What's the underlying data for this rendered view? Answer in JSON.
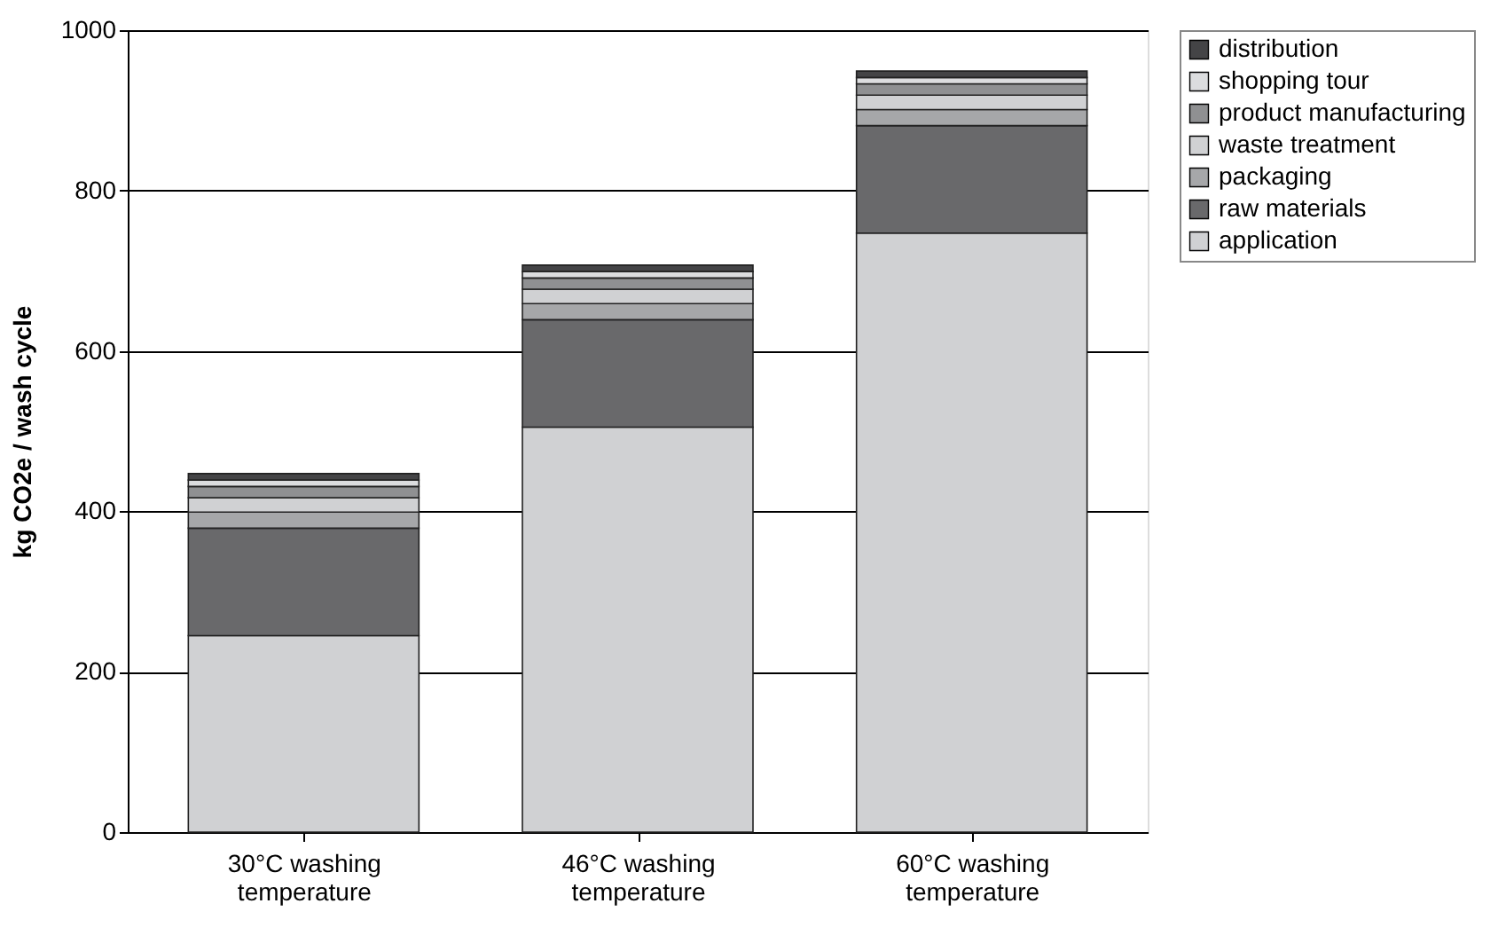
{
  "chart_data": {
    "type": "bar",
    "stacked": true,
    "ylabel": "kg CO2e / wash cycle",
    "categories": [
      "30°C washing temperature",
      "46°C washing temperature",
      "60°C washing temperature"
    ],
    "series": [
      {
        "name": "application",
        "color": "#d0d1d3",
        "values": [
          245,
          505,
          747
        ]
      },
      {
        "name": "raw materials",
        "color": "#69696b",
        "values": [
          134,
          134,
          134
        ]
      },
      {
        "name": "packaging",
        "color": "#a6a7a9",
        "values": [
          20,
          20,
          20
        ]
      },
      {
        "name": "waste treatment",
        "color": "#d0d1d3",
        "values": [
          18,
          18,
          18
        ]
      },
      {
        "name": "product manufacturing",
        "color": "#8f9092",
        "values": [
          14,
          14,
          14
        ]
      },
      {
        "name": "shopping tour",
        "color": "#dcdddf",
        "values": [
          8,
          8,
          8
        ]
      },
      {
        "name": "distribution",
        "color": "#444446",
        "values": [
          8,
          8,
          8
        ]
      }
    ],
    "ylim": [
      0,
      1000
    ],
    "yticks": [
      0,
      200,
      400,
      600,
      800,
      1000
    ],
    "grid": "y",
    "legend": "right"
  }
}
